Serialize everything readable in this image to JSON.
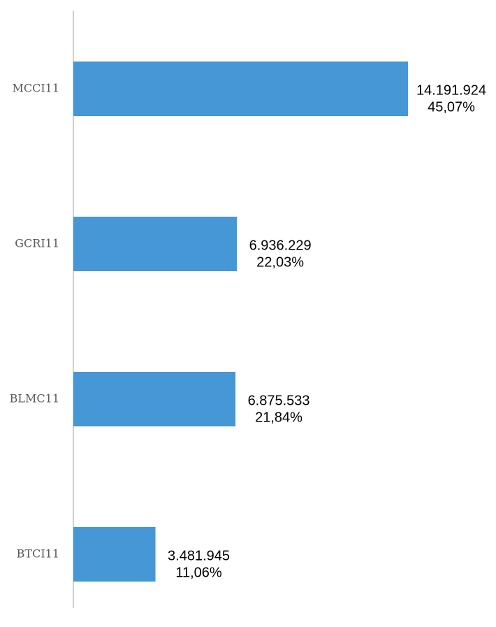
{
  "chart_data": {
    "type": "bar",
    "orientation": "horizontal",
    "categories": [
      "MCCI11",
      "GCRI11",
      "BLMC11",
      "BTCI11"
    ],
    "values": [
      14191924,
      6936229,
      6875533,
      3481945
    ],
    "value_labels": [
      "14.191.924",
      "6.936.229",
      "6.875.533",
      "3.481.945"
    ],
    "shares": [
      45.07,
      22.03,
      21.84,
      11.06
    ],
    "share_labels": [
      "45,07%",
      "22,03%",
      "21,84%",
      "11,06%"
    ],
    "color": "#4597d6"
  }
}
